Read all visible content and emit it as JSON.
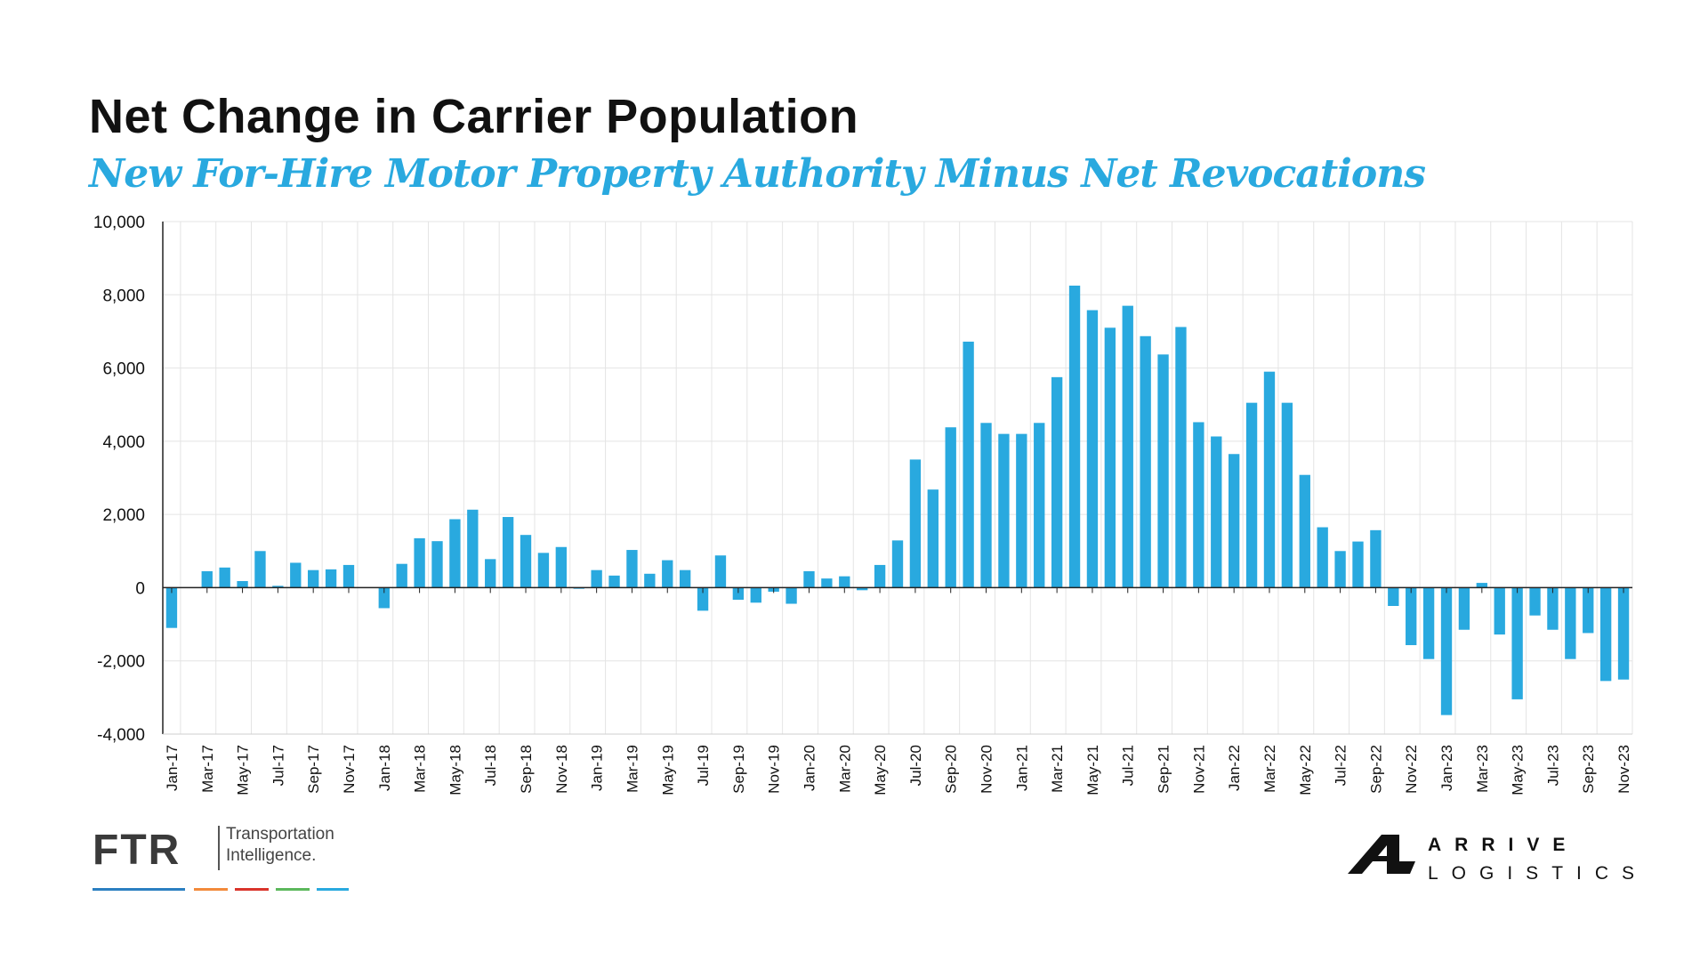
{
  "title": "Net Change in Carrier Population",
  "subtitle": "New For-Hire Motor Property Authority Minus Net Revocations",
  "colors": {
    "bar": "#29a9df",
    "title": "#111111",
    "subtitle": "#29a9df",
    "grid": "#e4e4e4"
  },
  "chart_data": {
    "type": "bar",
    "ylim": [
      -4000,
      10000
    ],
    "yticks": [
      "10,000",
      "8,000",
      "6,000",
      "4,000",
      "2,000",
      "0",
      "-2,000",
      "-4,000"
    ],
    "ytick_values": [
      10000,
      8000,
      6000,
      4000,
      2000,
      0,
      -2000,
      -4000
    ],
    "grid": true,
    "legend": "none",
    "categories": [
      "Jan-17",
      "Feb-17",
      "Mar-17",
      "Apr-17",
      "May-17",
      "Jun-17",
      "Jul-17",
      "Aug-17",
      "Sep-17",
      "Oct-17",
      "Nov-17",
      "Dec-17",
      "Jan-18",
      "Feb-18",
      "Mar-18",
      "Apr-18",
      "May-18",
      "Jun-18",
      "Jul-18",
      "Aug-18",
      "Sep-18",
      "Oct-18",
      "Nov-18",
      "Dec-18",
      "Jan-19",
      "Feb-19",
      "Mar-19",
      "Apr-19",
      "May-19",
      "Jun-19",
      "Jul-19",
      "Aug-19",
      "Sep-19",
      "Oct-19",
      "Nov-19",
      "Dec-19",
      "Jan-20",
      "Feb-20",
      "Mar-20",
      "Apr-20",
      "May-20",
      "Jun-20",
      "Jul-20",
      "Aug-20",
      "Sep-20",
      "Oct-20",
      "Nov-20",
      "Dec-20",
      "Jan-21",
      "Feb-21",
      "Mar-21",
      "Apr-21",
      "May-21",
      "Jun-21",
      "Jul-21",
      "Aug-21",
      "Sep-21",
      "Oct-21",
      "Nov-21",
      "Dec-21",
      "Jan-22",
      "Feb-22",
      "Mar-22",
      "Apr-22",
      "May-22",
      "Jun-22",
      "Jul-22",
      "Aug-22",
      "Sep-22",
      "Oct-22",
      "Nov-22",
      "Dec-22",
      "Jan-23",
      "Feb-23",
      "Mar-23",
      "Apr-23",
      "May-23",
      "Jun-23",
      "Jul-23",
      "Aug-23",
      "Sep-23",
      "Oct-23",
      "Nov-23"
    ],
    "xtick_labels": [
      "Jan-17",
      "Mar-17",
      "May-17",
      "Jul-17",
      "Sep-17",
      "Nov-17",
      "Jan-18",
      "Mar-18",
      "May-18",
      "Jul-18",
      "Sep-18",
      "Nov-18",
      "Jan-19",
      "Mar-19",
      "May-19",
      "Jul-19",
      "Sep-19",
      "Nov-19",
      "Jan-20",
      "Mar-20",
      "May-20",
      "Jul-20",
      "Sep-20",
      "Nov-20",
      "Jan-21",
      "Mar-21",
      "May-21",
      "Jul-21",
      "Sep-21",
      "Nov-21",
      "Jan-22",
      "Mar-22",
      "May-22",
      "Jul-22",
      "Sep-22",
      "Nov-22",
      "Jan-23",
      "Mar-23",
      "May-23",
      "Jul-23",
      "Sep-23",
      "Nov-23"
    ],
    "values": [
      -1100,
      0,
      450,
      550,
      180,
      1000,
      50,
      680,
      480,
      500,
      620,
      0,
      -560,
      650,
      1350,
      1270,
      1870,
      2130,
      780,
      1930,
      1440,
      950,
      1110,
      -30,
      480,
      330,
      1030,
      380,
      750,
      480,
      -630,
      880,
      -330,
      -410,
      -110,
      -440,
      450,
      250,
      310,
      -70,
      620,
      1290,
      3500,
      2680,
      4380,
      6720,
      4500,
      4200,
      4200,
      4500,
      5750,
      8250,
      7580,
      7100,
      7700,
      6870,
      6370,
      7120,
      4520,
      4130,
      3650,
      5050,
      5900,
      5050,
      3080,
      1650,
      1000,
      1260,
      1570,
      -500,
      -1570,
      -1950,
      -3480,
      -1150,
      130,
      -1280,
      -3050,
      -760,
      -1150,
      -1950,
      -1240,
      -2550,
      -2510
    ]
  },
  "logos": {
    "ftr": {
      "letters": "FTR",
      "tagline_line1": "Transportation",
      "tagline_line2": "Intelligence.",
      "stripe_colors": [
        "#2b7fc1",
        "#f28a3b",
        "#d9342b",
        "#5cb85c",
        "#29a9df"
      ]
    },
    "arrive": {
      "line1": "ARRIVE",
      "line2": "LOGISTICS"
    }
  }
}
